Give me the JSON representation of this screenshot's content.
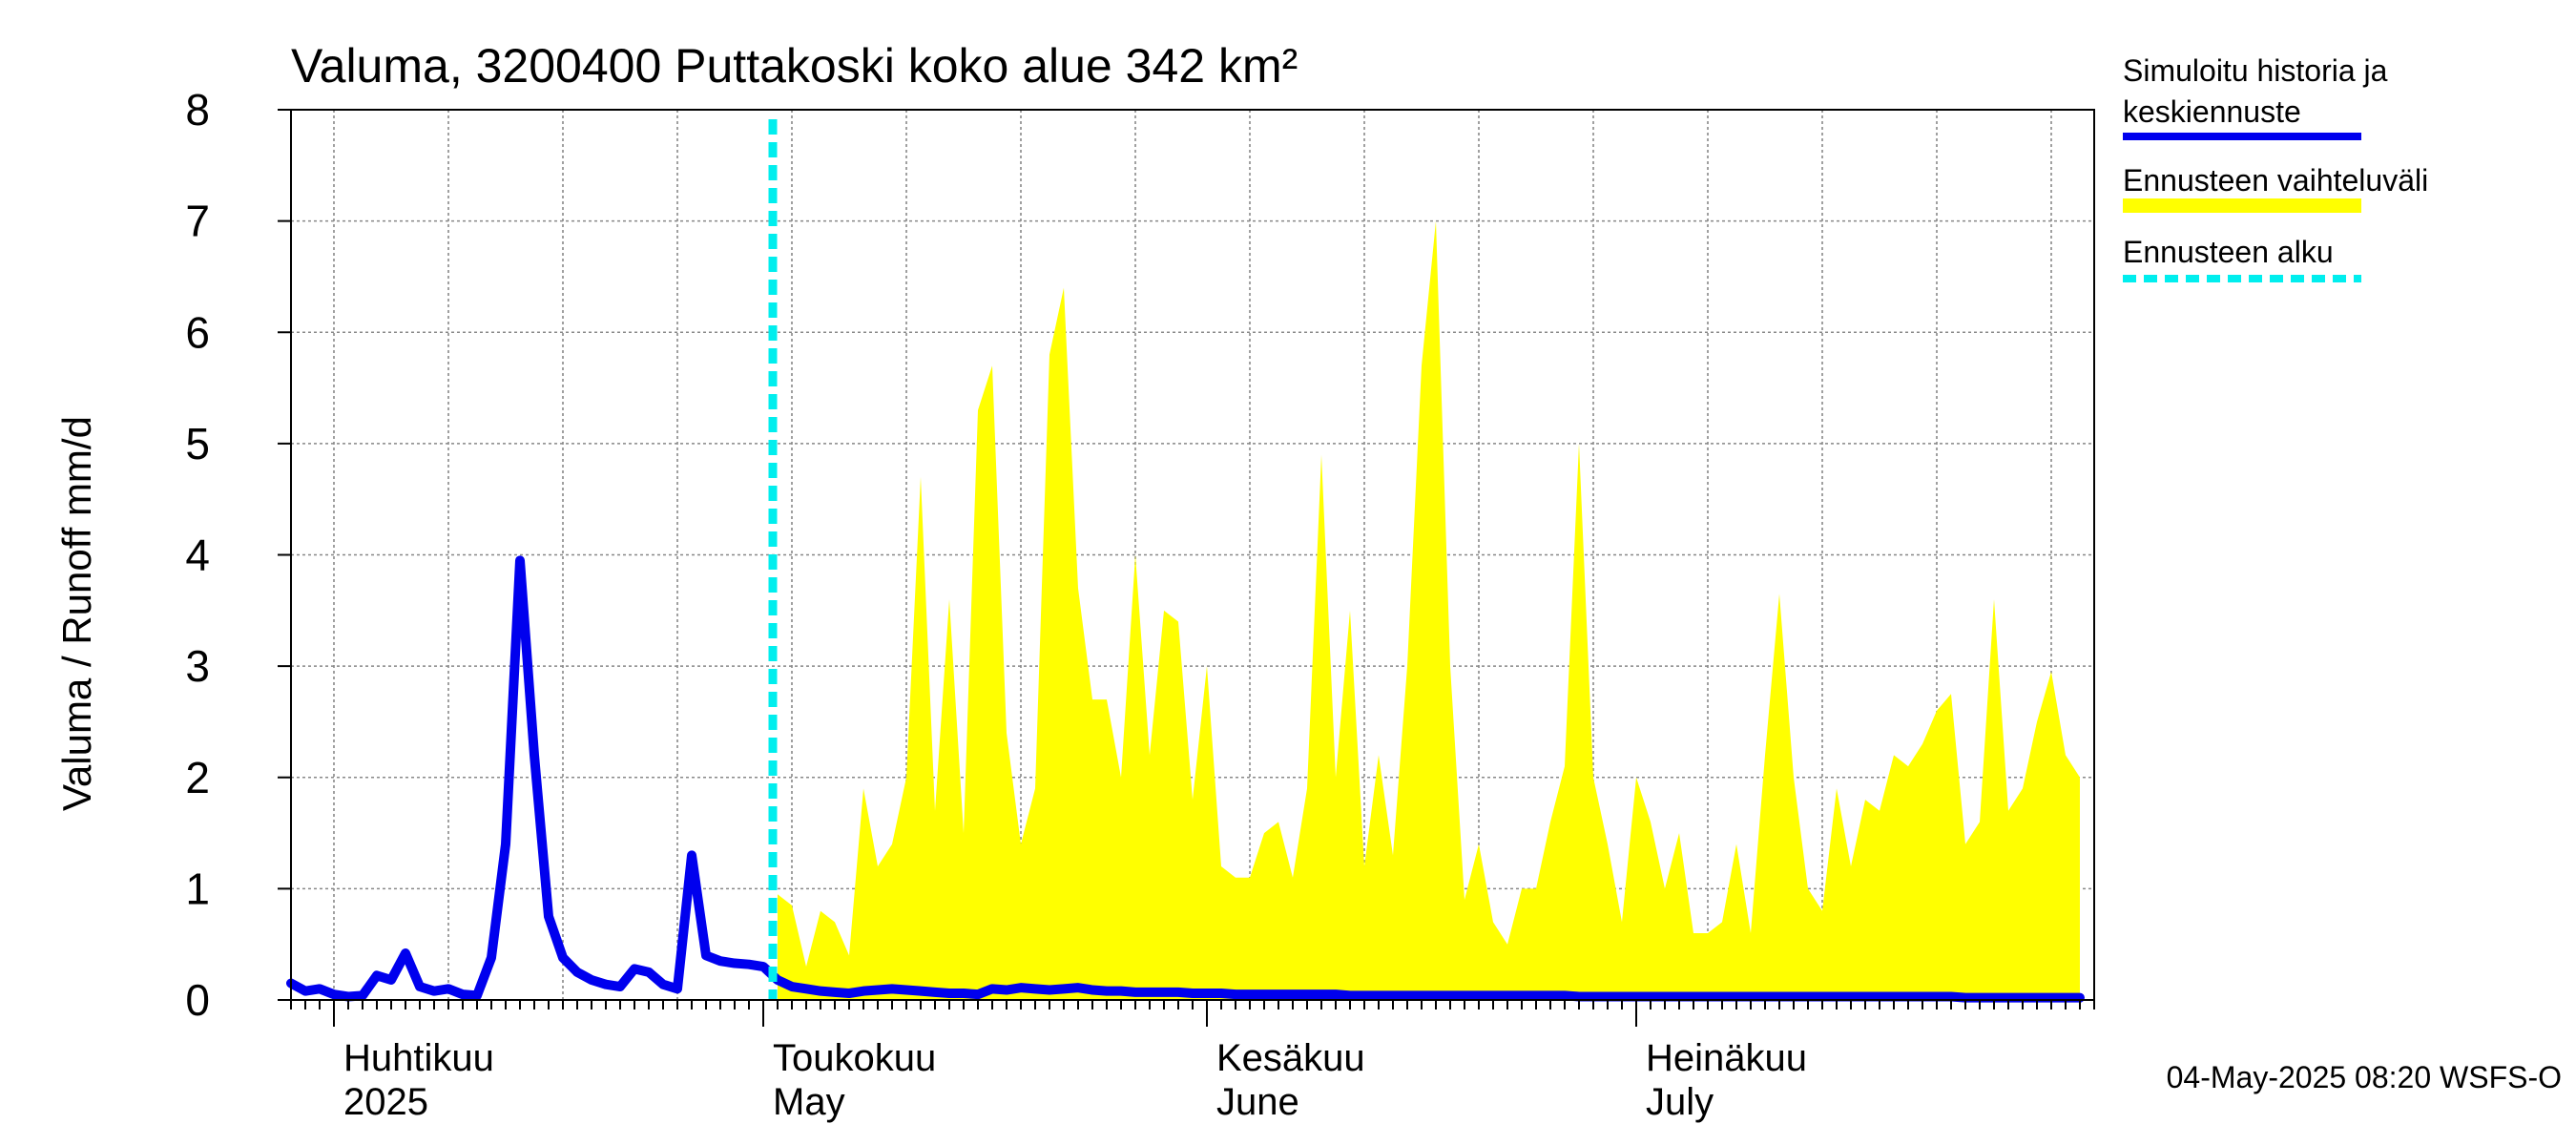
{
  "chart_data": {
    "type": "area",
    "title": "Valuma, 3200400 Puttakoski koko alue 342 km²",
    "ylabel": "Valuma / Runoff     mm/d",
    "ylim": [
      0,
      8
    ],
    "yticks": [
      "0",
      "1",
      "2",
      "3",
      "4",
      "5",
      "6",
      "7",
      "8"
    ],
    "x_start": "2025-03-29",
    "x_end": "2025-08-02",
    "forecast_start_day": 34,
    "months": [
      {
        "top": "Huhtikuu",
        "bottom": "2025",
        "day": 3
      },
      {
        "top": "Toukokuu",
        "bottom": "May",
        "day": 33
      },
      {
        "top": "Kesäkuu",
        "bottom": "June",
        "day": 64
      },
      {
        "top": "Heinäkuu",
        "bottom": "July",
        "day": 94
      }
    ],
    "legend": [
      {
        "label": "Simuloitu historia ja keskiennuste",
        "lines": [
          "Simuloitu historia ja",
          "keskiennuste"
        ],
        "color": "#0000ee",
        "style": "solid"
      },
      {
        "label": "Ennusteen vaihteluväli",
        "lines": [
          "Ennusteen vaihteluväli"
        ],
        "color": "#ffff00",
        "style": "band"
      },
      {
        "label": "Ennusteen alku",
        "lines": [
          "Ennusteen alku"
        ],
        "color": "#00eeee",
        "style": "dashed"
      }
    ],
    "series": [
      {
        "name": "Simuloitu historia ja keskiennuste",
        "color": "#0000ee",
        "x": [
          0,
          1,
          2,
          3,
          4,
          5,
          6,
          7,
          8,
          9,
          10,
          11,
          12,
          13,
          14,
          15,
          16,
          17,
          18,
          19,
          20,
          21,
          22,
          23,
          24,
          25,
          26,
          27,
          28,
          29,
          30,
          31,
          32,
          33,
          34,
          35,
          36,
          37,
          38,
          39,
          40,
          41,
          42,
          43,
          44,
          45,
          46,
          47,
          48,
          49,
          50,
          51,
          52,
          53,
          54,
          55,
          56,
          57,
          58,
          59,
          60,
          61,
          62,
          63,
          64,
          65,
          66,
          67,
          68,
          69,
          70,
          71,
          72,
          73,
          74,
          75,
          76,
          77,
          78,
          79,
          80,
          81,
          82,
          83,
          84,
          85,
          86,
          87,
          88,
          89,
          90,
          91,
          92,
          93,
          94,
          95,
          96,
          97,
          98,
          99,
          100,
          101,
          102,
          103,
          104,
          105,
          106,
          107,
          108,
          109,
          110,
          111,
          112,
          113,
          114,
          115,
          116,
          117,
          118,
          119,
          120,
          121,
          122,
          123,
          124,
          125
        ],
        "y": [
          0.15,
          0.08,
          0.1,
          0.05,
          0.03,
          0.04,
          0.22,
          0.18,
          0.42,
          0.12,
          0.08,
          0.1,
          0.05,
          0.04,
          0.38,
          1.4,
          3.95,
          2.2,
          0.75,
          0.38,
          0.25,
          0.18,
          0.14,
          0.12,
          0.28,
          0.25,
          0.14,
          0.1,
          1.3,
          0.4,
          0.35,
          0.33,
          0.32,
          0.3,
          0.18,
          0.12,
          0.1,
          0.08,
          0.07,
          0.06,
          0.08,
          0.09,
          0.1,
          0.09,
          0.08,
          0.07,
          0.06,
          0.06,
          0.05,
          0.1,
          0.09,
          0.11,
          0.1,
          0.09,
          0.1,
          0.11,
          0.09,
          0.08,
          0.08,
          0.07,
          0.07,
          0.07,
          0.07,
          0.06,
          0.06,
          0.06,
          0.05,
          0.05,
          0.05,
          0.05,
          0.05,
          0.05,
          0.05,
          0.05,
          0.04,
          0.04,
          0.04,
          0.04,
          0.04,
          0.04,
          0.04,
          0.04,
          0.04,
          0.04,
          0.04,
          0.04,
          0.04,
          0.04,
          0.04,
          0.04,
          0.03,
          0.03,
          0.03,
          0.03,
          0.03,
          0.03,
          0.03,
          0.03,
          0.03,
          0.03,
          0.03,
          0.03,
          0.03,
          0.03,
          0.03,
          0.03,
          0.03,
          0.03,
          0.03,
          0.03,
          0.03,
          0.03,
          0.03,
          0.03,
          0.03,
          0.03,
          0.03,
          0.02,
          0.02,
          0.02,
          0.02,
          0.02,
          0.02,
          0.02,
          0.02,
          0.02
        ]
      },
      {
        "name": "Ennusteen vaihteluväli",
        "color": "#ffff00",
        "x": [
          34,
          35,
          36,
          37,
          38,
          39,
          40,
          41,
          42,
          43,
          44,
          45,
          46,
          47,
          48,
          49,
          50,
          51,
          52,
          53,
          54,
          55,
          56,
          57,
          58,
          59,
          60,
          61,
          62,
          63,
          64,
          65,
          66,
          67,
          68,
          69,
          70,
          71,
          72,
          73,
          74,
          75,
          76,
          77,
          78,
          79,
          80,
          81,
          82,
          83,
          84,
          85,
          86,
          87,
          88,
          89,
          90,
          91,
          92,
          93,
          94,
          95,
          96,
          97,
          98,
          99,
          100,
          101,
          102,
          103,
          104,
          105,
          106,
          107,
          108,
          109,
          110,
          111,
          112,
          113,
          114,
          115,
          116,
          117,
          118,
          119,
          120,
          121,
          122,
          123,
          124,
          125
        ],
        "y": [
          0.95,
          0.85,
          0.3,
          0.8,
          0.7,
          0.4,
          1.9,
          1.2,
          1.4,
          2.0,
          4.7,
          1.7,
          3.6,
          1.5,
          5.3,
          5.7,
          2.4,
          1.4,
          1.9,
          5.8,
          6.4,
          3.7,
          2.7,
          2.7,
          2.0,
          4.0,
          2.2,
          3.5,
          3.4,
          1.8,
          3.0,
          1.2,
          1.1,
          1.1,
          1.5,
          1.6,
          1.1,
          1.9,
          4.9,
          2.0,
          3.5,
          1.2,
          2.2,
          1.3,
          3.0,
          5.7,
          7.0,
          3.0,
          0.9,
          1.4,
          0.7,
          0.5,
          1.0,
          1.0,
          1.6,
          2.1,
          5.0,
          2.0,
          1.4,
          0.7,
          2.0,
          1.6,
          1.0,
          1.5,
          0.6,
          0.6,
          0.7,
          1.4,
          0.6,
          2.2,
          3.65,
          2.0,
          1.0,
          0.8,
          1.9,
          1.2,
          1.8,
          1.7,
          2.2,
          2.1,
          2.3,
          2.6,
          2.75,
          1.4,
          1.6,
          3.6,
          1.7,
          1.9,
          2.5,
          2.95,
          2.2,
          2.0
        ]
      }
    ]
  },
  "footer": "04-May-2025 08:20 WSFS-O"
}
